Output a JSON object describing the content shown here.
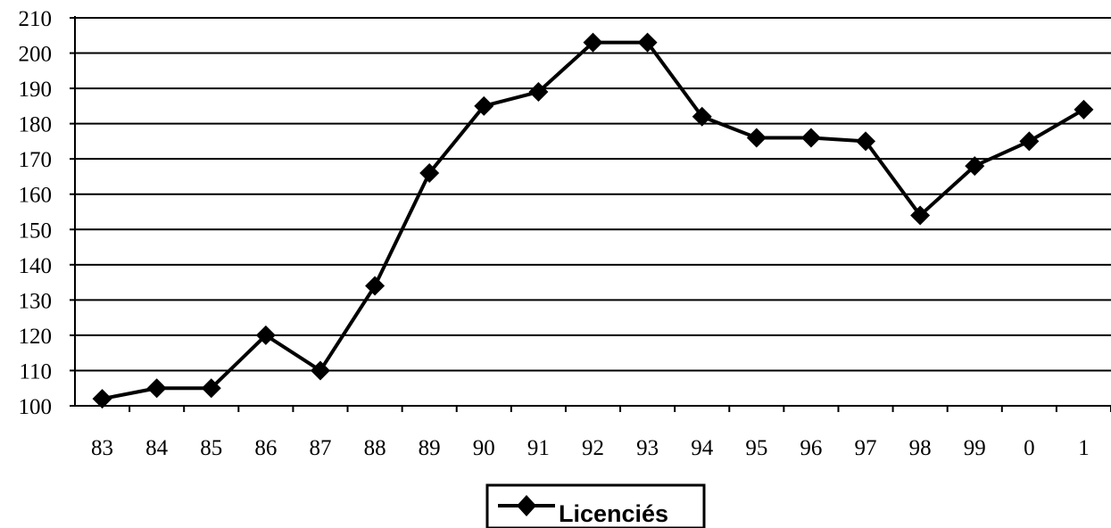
{
  "chart_data": {
    "type": "line",
    "categories": [
      "83",
      "84",
      "85",
      "86",
      "87",
      "88",
      "89",
      "90",
      "91",
      "92",
      "93",
      "94",
      "95",
      "96",
      "97",
      "98",
      "99",
      "0",
      "1"
    ],
    "series": [
      {
        "name": "Licenciés",
        "values": [
          102,
          105,
          105,
          120,
          110,
          134,
          166,
          185,
          189,
          203,
          203,
          182,
          176,
          176,
          175,
          154,
          168,
          175,
          184
        ],
        "color": "#000000",
        "marker": "diamond"
      }
    ],
    "yticks": [
      "100",
      "110",
      "120",
      "130",
      "140",
      "150",
      "160",
      "170",
      "180",
      "190",
      "200",
      "210"
    ],
    "ylim": [
      100,
      210
    ],
    "grid": true,
    "legend_position": "bottom-center"
  }
}
